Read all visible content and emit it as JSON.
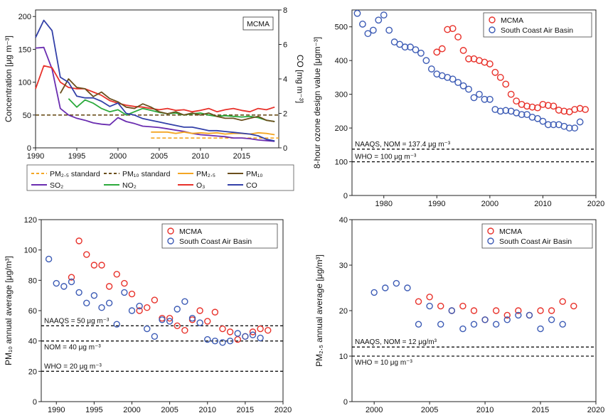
{
  "chart_data": [
    {
      "id": "A",
      "type": "line",
      "inset_label": "MCMA",
      "ylabel": "Concentration [μg m⁻³]",
      "y2label": "CO [mg m⁻³]",
      "xlim": [
        1990,
        2019.5
      ],
      "ylim": [
        0,
        210
      ],
      "y2lim": [
        0,
        8
      ],
      "x_ticks": [
        1990,
        1995,
        2000,
        2005,
        2010,
        2015
      ],
      "y_ticks": [
        0,
        50,
        100,
        150,
        200
      ],
      "y2_ticks": [
        0,
        2,
        4,
        6,
        8
      ],
      "grid": false,
      "legend_position": "below",
      "legend": [
        {
          "key": "pm25_std",
          "label": "PM₂.₅ standard",
          "color": "#F4A623",
          "dash": true
        },
        {
          "key": "pm10_std",
          "label": "PM₁₀ standard",
          "color": "#6B4F1D",
          "dash": true
        },
        {
          "key": "pm25",
          "label": "PM₂.₅",
          "color": "#F4A623",
          "dash": false
        },
        {
          "key": "pm10",
          "label": "PM₁₀",
          "color": "#6B4F1D",
          "dash": false
        },
        {
          "key": "so2",
          "label": "SO₂",
          "color": "#6A2DB0",
          "dash": false
        },
        {
          "key": "no2",
          "label": "NO₂",
          "color": "#2BAA3C",
          "dash": false
        },
        {
          "key": "o3",
          "label": "O₃",
          "color": "#E8312A",
          "dash": false
        },
        {
          "key": "co",
          "label": "CO",
          "color": "#3340A8",
          "dash": false
        }
      ],
      "series": [
        {
          "key": "so2",
          "axis": "left",
          "color": "#6A2DB0",
          "x": [
            1990,
            1991,
            1992,
            1993,
            1994,
            1995,
            1996,
            1997,
            1998,
            1999,
            2000,
            2001,
            2002,
            2003,
            2004,
            2005,
            2006,
            2007,
            2008,
            2009,
            2010,
            2011,
            2012,
            2013,
            2014,
            2015,
            2016,
            2017,
            2018,
            2019
          ],
          "y": [
            152,
            153,
            120,
            60,
            50,
            45,
            42,
            38,
            36,
            35,
            46,
            40,
            37,
            33,
            32,
            31,
            29,
            27,
            25,
            22,
            20,
            19,
            18,
            17,
            15,
            15,
            14,
            12,
            11,
            10
          ]
        },
        {
          "key": "no2",
          "axis": "left",
          "color": "#2BAA3C",
          "x": [
            1994,
            1995,
            1996,
            1997,
            1998,
            1999,
            2000,
            2001,
            2002,
            2003,
            2004,
            2005,
            2006,
            2007,
            2008,
            2009,
            2010,
            2011,
            2012,
            2013,
            2014,
            2015,
            2016,
            2017,
            2018,
            2019
          ],
          "y": [
            75,
            62,
            73,
            68,
            60,
            55,
            58,
            50,
            55,
            60,
            57,
            54,
            52,
            53,
            50,
            52,
            53,
            50,
            48,
            49,
            48,
            47,
            48,
            46,
            42,
            40
          ]
        },
        {
          "key": "o3",
          "axis": "left",
          "color": "#E8312A",
          "x": [
            1990,
            1991,
            1992,
            1993,
            1994,
            1995,
            1996,
            1997,
            1998,
            1999,
            2000,
            2001,
            2002,
            2003,
            2004,
            2005,
            2006,
            2007,
            2008,
            2009,
            2010,
            2011,
            2012,
            2013,
            2014,
            2015,
            2016,
            2017,
            2018,
            2019
          ],
          "y": [
            90,
            125,
            122,
            100,
            92,
            90,
            90,
            85,
            80,
            72,
            68,
            65,
            63,
            62,
            60,
            58,
            60,
            57,
            58,
            55,
            57,
            60,
            55,
            58,
            60,
            57,
            55,
            60,
            58,
            62
          ]
        },
        {
          "key": "pm10",
          "axis": "left",
          "color": "#6B4F1D",
          "x": [
            1993,
            1994,
            1995,
            1996,
            1997,
            1998,
            1999,
            2000,
            2001,
            2002,
            2003,
            2004,
            2005,
            2006,
            2007,
            2008,
            2009,
            2010,
            2011,
            2012,
            2013,
            2014,
            2015,
            2016,
            2017,
            2018,
            2019
          ],
          "y": [
            83,
            105,
            92,
            90,
            78,
            85,
            75,
            70,
            62,
            60,
            67,
            62,
            55,
            52,
            55,
            50,
            53,
            50,
            53,
            48,
            45,
            45,
            42,
            45,
            48,
            42,
            40
          ]
        },
        {
          "key": "pm25",
          "axis": "left",
          "color": "#F4A623",
          "x": [
            2004,
            2005,
            2006,
            2007,
            2008,
            2009,
            2010,
            2011,
            2012,
            2013,
            2014,
            2015,
            2016,
            2017,
            2018,
            2019
          ],
          "y": [
            24,
            24,
            24,
            22,
            24,
            22,
            23,
            22,
            23,
            21,
            22,
            22,
            21,
            23,
            22,
            20
          ]
        },
        {
          "key": "co",
          "axis": "right",
          "color": "#3340A8",
          "x": [
            1990,
            1991,
            1992,
            1993,
            1994,
            1995,
            1996,
            1997,
            1998,
            1999,
            2000,
            2001,
            2002,
            2003,
            2004,
            2005,
            2006,
            2007,
            2008,
            2009,
            2010,
            2011,
            2012,
            2013,
            2014,
            2015,
            2016,
            2017,
            2018,
            2019
          ],
          "y": [
            6.4,
            7.4,
            6.8,
            4.1,
            3.8,
            3.0,
            2.9,
            2.9,
            2.7,
            2.4,
            2.6,
            2.0,
            1.9,
            1.7,
            1.6,
            1.5,
            1.4,
            1.3,
            1.2,
            1.2,
            1.1,
            1.0,
            1.0,
            0.95,
            0.9,
            0.85,
            0.8,
            0.7,
            0.5,
            0.4
          ]
        }
      ],
      "reference_lines": [
        {
          "key": "pm10_std",
          "y": 50,
          "x_range": [
            1990,
            2019.5
          ],
          "color": "#6B4F1D"
        },
        {
          "key": "pm25_std",
          "y": 15,
          "x_range": [
            2004,
            2019.5
          ],
          "color": "#F4A623"
        }
      ]
    },
    {
      "id": "B",
      "type": "scatter",
      "ylabel": "8-hour ozone design value [μgm⁻³]",
      "xlim": [
        1974,
        2020
      ],
      "ylim": [
        0,
        550
      ],
      "x_ticks": [
        1980,
        1990,
        2000,
        2010,
        2020
      ],
      "y_ticks": [
        0,
        100,
        200,
        300,
        400,
        500
      ],
      "grid": false,
      "legend_position": "top-right",
      "series": [
        {
          "name": "MCMA",
          "color": "#E8312A",
          "x": [
            1990,
            1991,
            1992,
            1993,
            1994,
            1995,
            1996,
            1997,
            1998,
            1999,
            2000,
            2001,
            2002,
            2003,
            2004,
            2005,
            2006,
            2007,
            2008,
            2009,
            2010,
            2011,
            2012,
            2013,
            2014,
            2015,
            2016,
            2017,
            2018
          ],
          "y": [
            425,
            435,
            492,
            495,
            470,
            430,
            405,
            405,
            400,
            395,
            390,
            365,
            350,
            330,
            300,
            280,
            270,
            265,
            262,
            260,
            270,
            267,
            265,
            253,
            250,
            248,
            255,
            258,
            255
          ]
        },
        {
          "name": "South Coast Air Basin",
          "color": "#3C5BB5",
          "x": [
            1975,
            1976,
            1977,
            1978,
            1979,
            1980,
            1981,
            1982,
            1983,
            1984,
            1985,
            1986,
            1987,
            1988,
            1989,
            1990,
            1991,
            1992,
            1993,
            1994,
            1995,
            1996,
            1997,
            1998,
            1999,
            2000,
            2001,
            2002,
            2003,
            2004,
            2005,
            2006,
            2007,
            2008,
            2009,
            2010,
            2011,
            2012,
            2013,
            2014,
            2015,
            2016,
            2017
          ],
          "y": [
            540,
            508,
            480,
            490,
            520,
            535,
            490,
            455,
            448,
            440,
            440,
            432,
            422,
            400,
            375,
            360,
            355,
            350,
            345,
            335,
            325,
            315,
            290,
            300,
            285,
            285,
            255,
            250,
            252,
            250,
            245,
            240,
            240,
            232,
            228,
            220,
            210,
            210,
            210,
            205,
            200,
            200,
            218
          ]
        }
      ],
      "reference_lines": [
        {
          "y": 137.4,
          "label": "NAAQS, NOM = 137.4 μg m⁻³"
        },
        {
          "y": 100,
          "label": "WHO = 100 μg m⁻³"
        }
      ]
    },
    {
      "id": "C",
      "type": "scatter",
      "ylabel": "PM₁₀ annual average [μg/m³]",
      "xlim": [
        1988,
        2020
      ],
      "ylim": [
        0,
        120
      ],
      "x_ticks": [
        1990,
        1995,
        2000,
        2005,
        2010,
        2015,
        2020
      ],
      "y_ticks": [
        0,
        20,
        40,
        60,
        80,
        100,
        120
      ],
      "grid": false,
      "legend_position": "top-right",
      "series": [
        {
          "name": "MCMA",
          "color": "#E8312A",
          "x": [
            1992,
            1993,
            1994,
            1995,
            1996,
            1997,
            1998,
            1999,
            2000,
            2001,
            2002,
            2003,
            2004,
            2005,
            2006,
            2007,
            2008,
            2009,
            2010,
            2011,
            2012,
            2013,
            2014,
            2015,
            2016,
            2017,
            2018
          ],
          "y": [
            82,
            106,
            97,
            90,
            90,
            76,
            84,
            78,
            71,
            60,
            62,
            67,
            55,
            55,
            50,
            47,
            54,
            60,
            53,
            59,
            48,
            46,
            41,
            43,
            46,
            48,
            47
          ]
        },
        {
          "name": "South Coast Air Basin",
          "color": "#3C5BB5",
          "x": [
            1989,
            1990,
            1991,
            1992,
            1993,
            1994,
            1995,
            1996,
            1997,
            1998,
            1999,
            2000,
            2001,
            2002,
            2003,
            2004,
            2005,
            2006,
            2007,
            2008,
            2009,
            2010,
            2011,
            2012,
            2013,
            2014,
            2015,
            2016,
            2017
          ],
          "y": [
            94,
            78,
            76,
            79,
            72,
            65,
            70,
            62,
            65,
            51,
            72,
            60,
            63,
            48,
            43,
            54,
            53,
            61,
            66,
            55,
            52,
            41,
            40,
            39,
            40,
            45,
            43,
            44,
            42
          ]
        }
      ],
      "reference_lines": [
        {
          "y": 50,
          "label": "NAAQS = 50 μg m⁻³"
        },
        {
          "y": 40,
          "label": "NOM = 40 μg m⁻³"
        },
        {
          "y": 20,
          "label": "WHO = 20 μg m⁻³"
        }
      ]
    },
    {
      "id": "D",
      "type": "scatter",
      "ylabel": "PM₂.₅ annual average [μg/m³]",
      "xlim": [
        1998,
        2020
      ],
      "ylim": [
        0,
        40
      ],
      "x_ticks": [
        2000,
        2005,
        2010,
        2015,
        2020
      ],
      "y_ticks": [
        0,
        10,
        20,
        30,
        40
      ],
      "grid": false,
      "legend_position": "top-right",
      "series": [
        {
          "name": "MCMA",
          "color": "#E8312A",
          "x": [
            2004,
            2005,
            2006,
            2007,
            2008,
            2009,
            2010,
            2011,
            2012,
            2013,
            2014,
            2015,
            2016,
            2017,
            2018
          ],
          "y": [
            22,
            23,
            21,
            20,
            21,
            20,
            18,
            20,
            19,
            20,
            19,
            20,
            20,
            22,
            21
          ]
        },
        {
          "name": "South Coast Air Basin",
          "color": "#3C5BB5",
          "x": [
            2000,
            2001,
            2002,
            2003,
            2004,
            2005,
            2006,
            2007,
            2008,
            2009,
            2010,
            2011,
            2012,
            2013,
            2014,
            2015,
            2016,
            2017
          ],
          "y": [
            24,
            25,
            26,
            25,
            17,
            21,
            17,
            20,
            16,
            17,
            18,
            17,
            18,
            19,
            19,
            16,
            18,
            17
          ]
        }
      ],
      "reference_lines": [
        {
          "y": 12,
          "label": "NAAQS, NOM = 12 μg/m³"
        },
        {
          "y": 10,
          "label": "WHO = 10 μg m⁻³"
        }
      ]
    }
  ]
}
